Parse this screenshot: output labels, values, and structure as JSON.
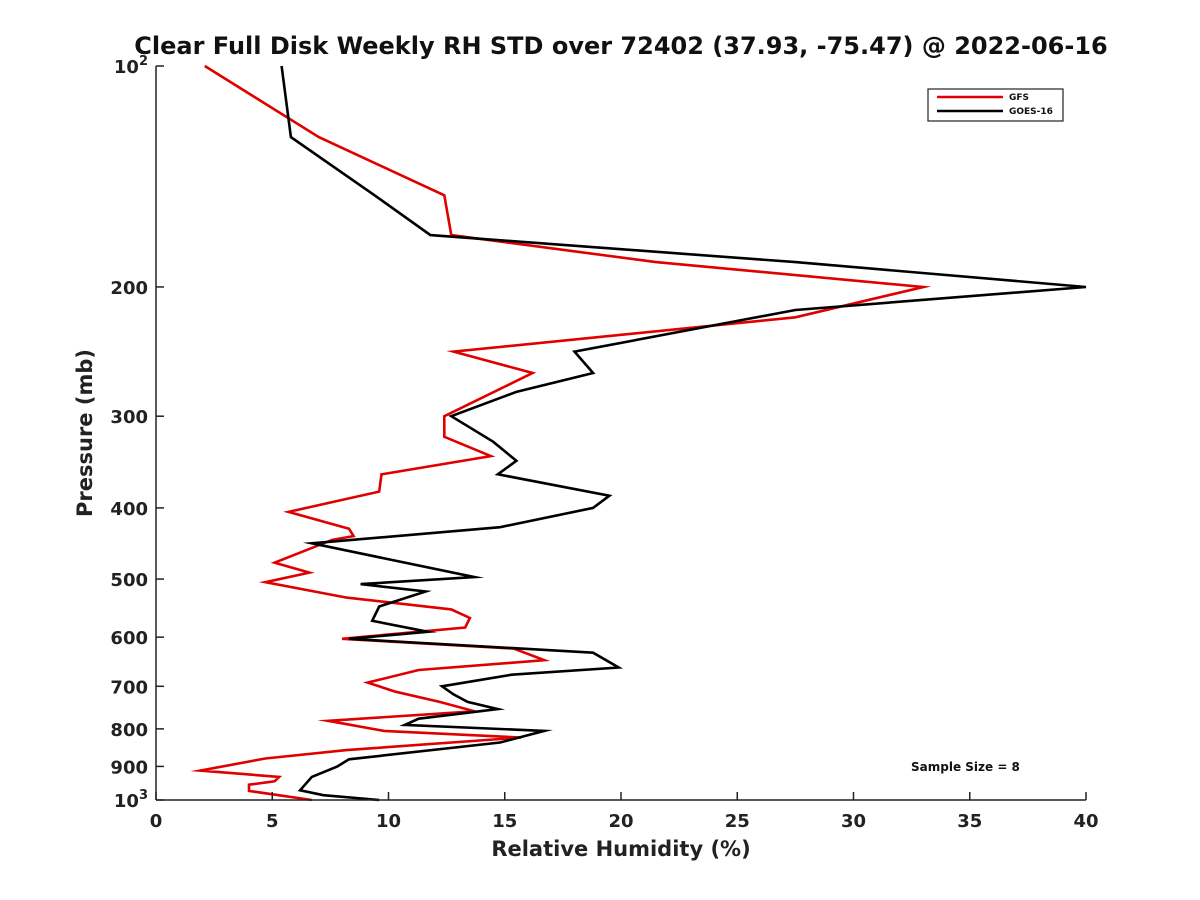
{
  "chart_data": {
    "type": "line",
    "title": "Clear Full Disk Weekly RH STD over 72402 (37.93, -75.47) @ 2022-06-16",
    "xlabel": "Relative Humidity (%)",
    "ylabel": "Pressure (mb)",
    "xlim": [
      0,
      40
    ],
    "ylim": [
      100,
      1000
    ],
    "y_scale": "log",
    "y_reversed": true,
    "x_ticks": [
      "0",
      "5",
      "10",
      "15",
      "20",
      "25",
      "30",
      "35",
      "40"
    ],
    "y_ticks": [
      {
        "value": 100,
        "base": "10",
        "sup": "2"
      },
      {
        "value": 200,
        "label": "200"
      },
      {
        "value": 300,
        "label": "300"
      },
      {
        "value": 400,
        "label": "400"
      },
      {
        "value": 500,
        "label": "500"
      },
      {
        "value": 600,
        "label": "600"
      },
      {
        "value": 700,
        "label": "700"
      },
      {
        "value": 800,
        "label": "800"
      },
      {
        "value": 900,
        "label": "900"
      },
      {
        "value": 1000,
        "base": "10",
        "sup": "3"
      }
    ],
    "legend_position": "top-right",
    "annotation": "Sample Size = 8",
    "series": [
      {
        "name": "GFS",
        "color": "#e00000",
        "points": [
          [
            2.1,
            100
          ],
          [
            7,
            125
          ],
          [
            12.4,
            150
          ],
          [
            12.7,
            170
          ],
          [
            21.5,
            185
          ],
          [
            33,
            200
          ],
          [
            27.5,
            220
          ],
          [
            12.8,
            245
          ],
          [
            16.2,
            262
          ],
          [
            12.4,
            300
          ],
          [
            12.4,
            320
          ],
          [
            14.4,
            340
          ],
          [
            9.7,
            360
          ],
          [
            9.6,
            380
          ],
          [
            5.7,
            405
          ],
          [
            8.3,
            427
          ],
          [
            8.5,
            437
          ],
          [
            7.6,
            442
          ],
          [
            5.1,
            475
          ],
          [
            6.6,
            490
          ],
          [
            4.7,
            505
          ],
          [
            8.2,
            530
          ],
          [
            12.7,
            550
          ],
          [
            13.5,
            565
          ],
          [
            13.3,
            582
          ],
          [
            8,
            603
          ],
          [
            15.4,
            622
          ],
          [
            16.7,
            645
          ],
          [
            11.3,
            665
          ],
          [
            9.1,
            692
          ],
          [
            10.3,
            712
          ],
          [
            12.2,
            735
          ],
          [
            13.7,
            757
          ],
          [
            7.4,
            780
          ],
          [
            9.8,
            805
          ],
          [
            15.7,
            822
          ],
          [
            8.2,
            855
          ],
          [
            4.7,
            878
          ],
          [
            1.9,
            912
          ],
          [
            5.3,
            930
          ],
          [
            5.1,
            943
          ],
          [
            4,
            953
          ],
          [
            4,
            972
          ],
          [
            6.7,
            1000
          ]
        ]
      },
      {
        "name": "GOES-16",
        "color": "#000000",
        "points": [
          [
            5.4,
            100
          ],
          [
            5.8,
            125
          ],
          [
            9.4,
            150
          ],
          [
            11.8,
            170
          ],
          [
            27.5,
            185
          ],
          [
            40,
            200
          ],
          [
            27.5,
            215
          ],
          [
            18,
            245
          ],
          [
            18.8,
            262
          ],
          [
            15.5,
            278
          ],
          [
            12.7,
            300
          ],
          [
            14.5,
            325
          ],
          [
            15.5,
            345
          ],
          [
            14.7,
            360
          ],
          [
            19.5,
            385
          ],
          [
            18.8,
            400
          ],
          [
            14.8,
            425
          ],
          [
            6.7,
            447
          ],
          [
            13.7,
            497
          ],
          [
            8.8,
            508
          ],
          [
            11.6,
            520
          ],
          [
            9.6,
            545
          ],
          [
            9.3,
            570
          ],
          [
            11.7,
            590
          ],
          [
            8.3,
            603
          ],
          [
            18.8,
            630
          ],
          [
            19.9,
            660
          ],
          [
            15.3,
            675
          ],
          [
            12.3,
            700
          ],
          [
            12.8,
            718
          ],
          [
            13.4,
            735
          ],
          [
            14.7,
            752
          ],
          [
            11.3,
            775
          ],
          [
            10.7,
            790
          ],
          [
            16.7,
            805
          ],
          [
            14.8,
            835
          ],
          [
            8.3,
            880
          ],
          [
            7.8,
            900
          ],
          [
            6.7,
            930
          ],
          [
            6.2,
            970
          ],
          [
            7.2,
            985
          ],
          [
            9.6,
            1000
          ]
        ]
      }
    ]
  }
}
